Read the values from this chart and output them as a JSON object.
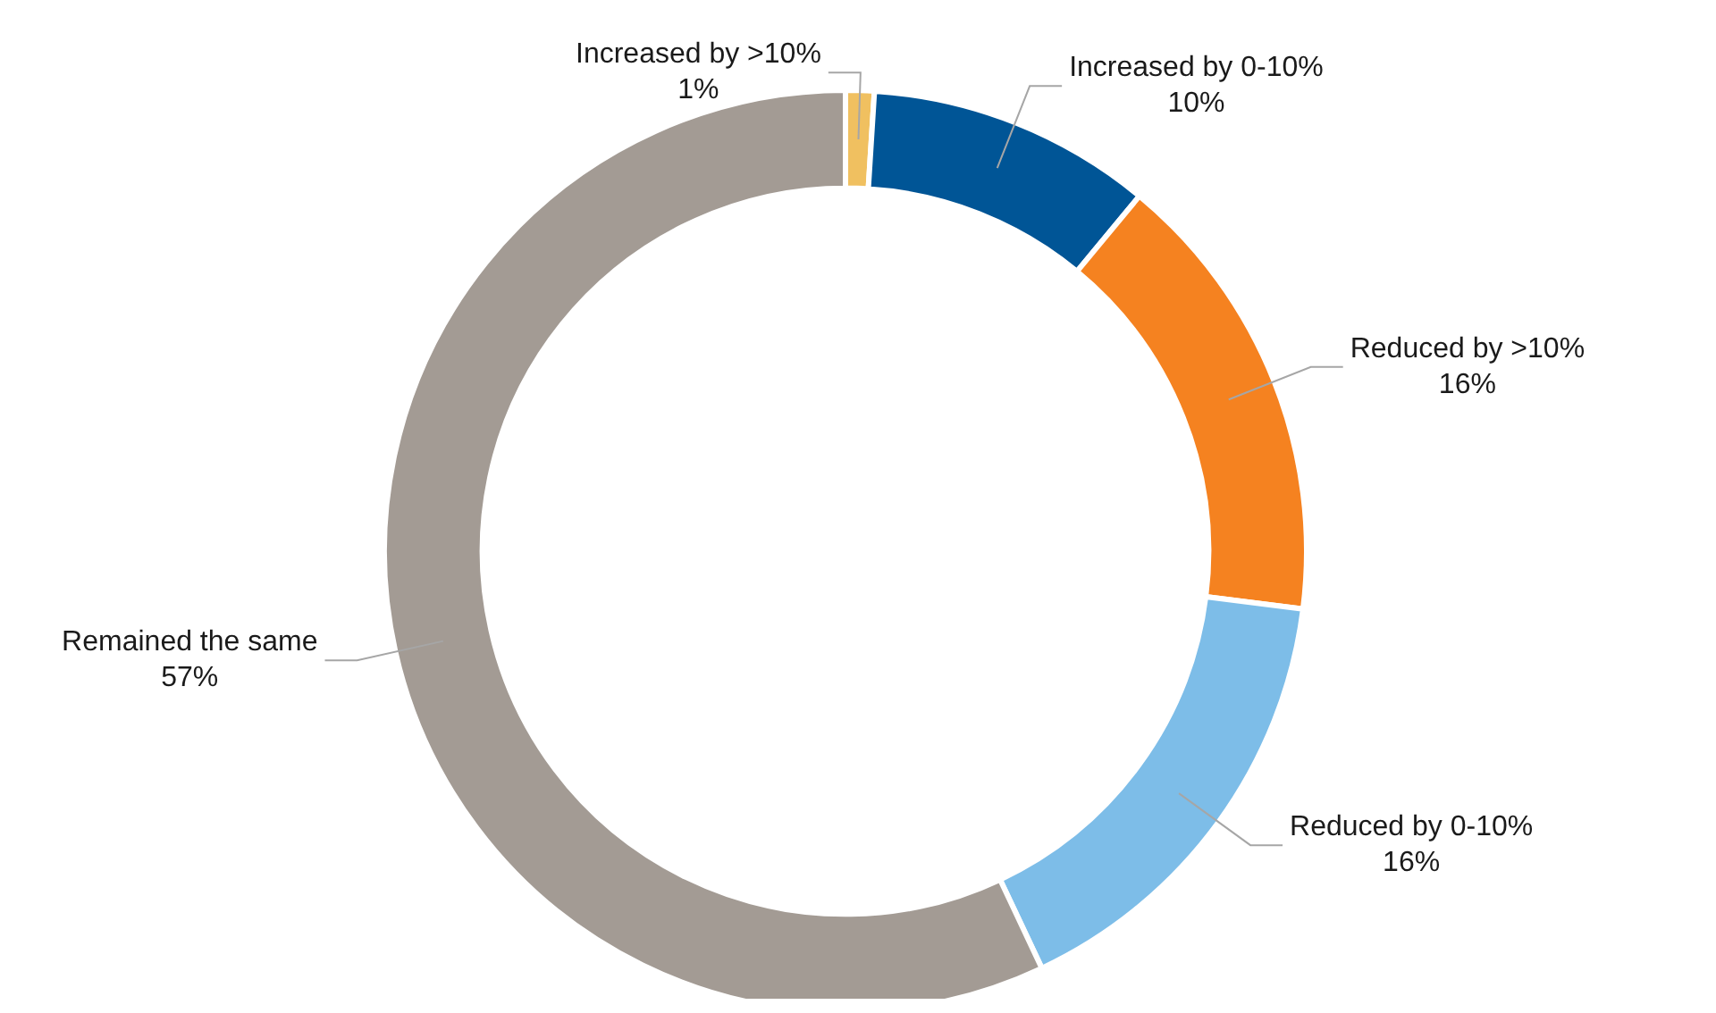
{
  "chart_data": {
    "type": "donut",
    "categories": [
      "Increased by >10%",
      "Increased by 0-10%",
      "Reduced by >10%",
      "Reduced by 0-10%",
      "Remained the same"
    ],
    "values": [
      1,
      10,
      16,
      16,
      57
    ],
    "colors": [
      "#f0c060",
      "#005596",
      "#f58220",
      "#7dbde8",
      "#a39b94"
    ],
    "value_labels": [
      "1%",
      "10%",
      "16%",
      "16%",
      "57%"
    ],
    "legend": false
  }
}
